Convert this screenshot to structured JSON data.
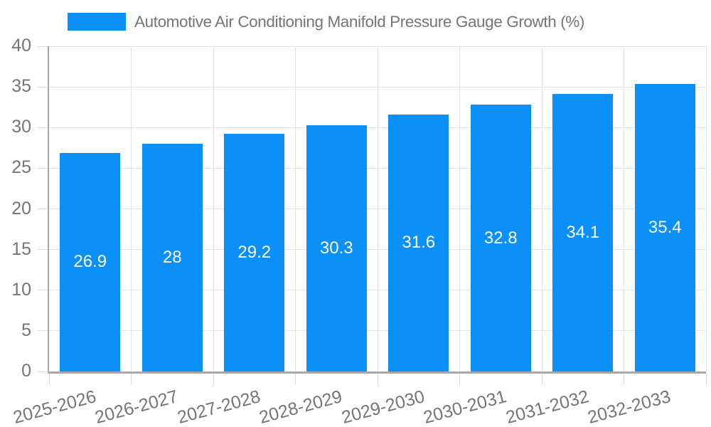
{
  "legend": {
    "label": "Automotive Air Conditioning Manifold Pressure Gauge Growth (%)"
  },
  "colors": {
    "bar": "#0a90f7",
    "text_gray": "#757575",
    "grid_light": "#e3e3e3",
    "axis_line": "#a8a8a8",
    "value_text": "#ffffff"
  },
  "chart_data": {
    "type": "bar",
    "title": "Automotive Air Conditioning Manifold Pressure Gauge Growth (%)",
    "categories": [
      "2025-2026",
      "2026-2027",
      "2027-2028",
      "2028-2029",
      "2029-2030",
      "2030-2031",
      "2031-2032",
      "2032-2033"
    ],
    "values": [
      26.9,
      28,
      29.2,
      30.3,
      31.6,
      32.8,
      34.1,
      35.4
    ],
    "value_labels": [
      "26.9",
      "28",
      "29.2",
      "30.3",
      "31.6",
      "32.8",
      "34.1",
      "35.4"
    ],
    "xlabel": "",
    "ylabel": "",
    "ylim": [
      0,
      40
    ],
    "yticks": [
      0,
      5,
      10,
      15,
      20,
      25,
      30,
      35,
      40
    ],
    "grid": true,
    "legend_position": "top-left",
    "value_label_position": "center-of-bar",
    "x_label_rotation_deg": -15
  }
}
